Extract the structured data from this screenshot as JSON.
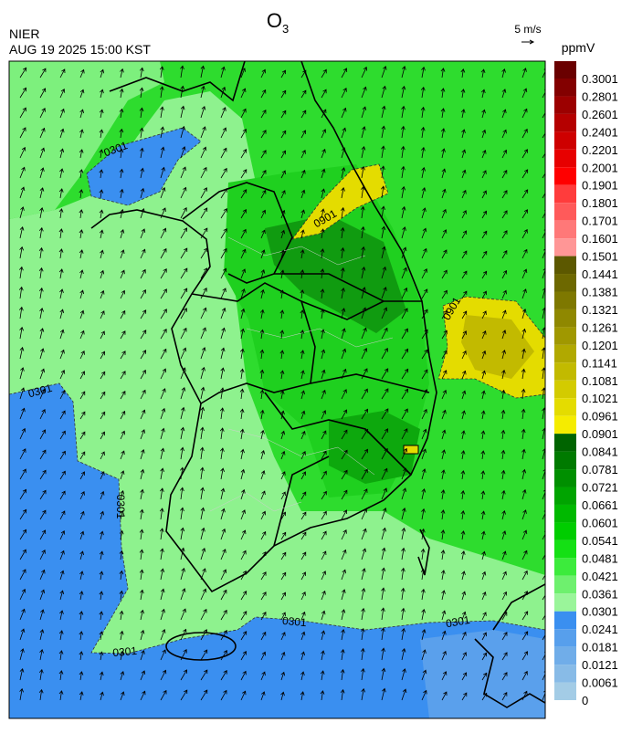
{
  "header": {
    "title": "O",
    "title_subscript": "3",
    "agency": "NIER",
    "timestamp": "AUG 19 2025 15:00 KST",
    "wind_reference": "5 m/s"
  },
  "colorbar": {
    "unit": "ppmV",
    "levels": [
      {
        "label": "0.3001",
        "color": "#6a0000"
      },
      {
        "label": "0.2801",
        "color": "#830000"
      },
      {
        "label": "0.2601",
        "color": "#9c0000"
      },
      {
        "label": "0.2401",
        "color": "#b50000"
      },
      {
        "label": "0.2201",
        "color": "#ce0000"
      },
      {
        "label": "0.2001",
        "color": "#e70000"
      },
      {
        "label": "0.1901",
        "color": "#ff0000"
      },
      {
        "label": "0.1801",
        "color": "#ff3c3c"
      },
      {
        "label": "0.1701",
        "color": "#ff5a5a"
      },
      {
        "label": "0.1601",
        "color": "#ff7878"
      },
      {
        "label": "0.1501",
        "color": "#ff9696"
      },
      {
        "label": "0.1441",
        "color": "#5c5800"
      },
      {
        "label": "0.1381",
        "color": "#6d6800"
      },
      {
        "label": "0.1321",
        "color": "#7e7800"
      },
      {
        "label": "0.1261",
        "color": "#8f8800"
      },
      {
        "label": "0.1201",
        "color": "#a09800"
      },
      {
        "label": "0.1141",
        "color": "#b1a900"
      },
      {
        "label": "0.1081",
        "color": "#c2ba00"
      },
      {
        "label": "0.1021",
        "color": "#d3cb00"
      },
      {
        "label": "0.0961",
        "color": "#e4dc00"
      },
      {
        "label": "0.0901",
        "color": "#f5ec00"
      },
      {
        "label": "0.0841",
        "color": "#006400"
      },
      {
        "label": "0.0781",
        "color": "#007a00"
      },
      {
        "label": "0.0721",
        "color": "#008f00"
      },
      {
        "label": "0.0661",
        "color": "#00a400"
      },
      {
        "label": "0.0601",
        "color": "#00b900"
      },
      {
        "label": "0.0541",
        "color": "#00cd00"
      },
      {
        "label": "0.0481",
        "color": "#14e014"
      },
      {
        "label": "0.0421",
        "color": "#3ceb3c"
      },
      {
        "label": "0.0361",
        "color": "#6ef06e"
      },
      {
        "label": "0.0301",
        "color": "#9af59a"
      },
      {
        "label": "0.0241",
        "color": "#3a8ff0"
      },
      {
        "label": "0.0181",
        "color": "#579fec"
      },
      {
        "label": "0.0121",
        "color": "#70ade9"
      },
      {
        "label": "0.0061",
        "color": "#88bbe7"
      },
      {
        "label": "0",
        "color": "#a3cce6"
      }
    ]
  },
  "contour_labels": [
    "0301",
    "0301",
    "0301",
    "0301",
    "0301",
    "0301",
    "0901",
    "0901"
  ]
}
